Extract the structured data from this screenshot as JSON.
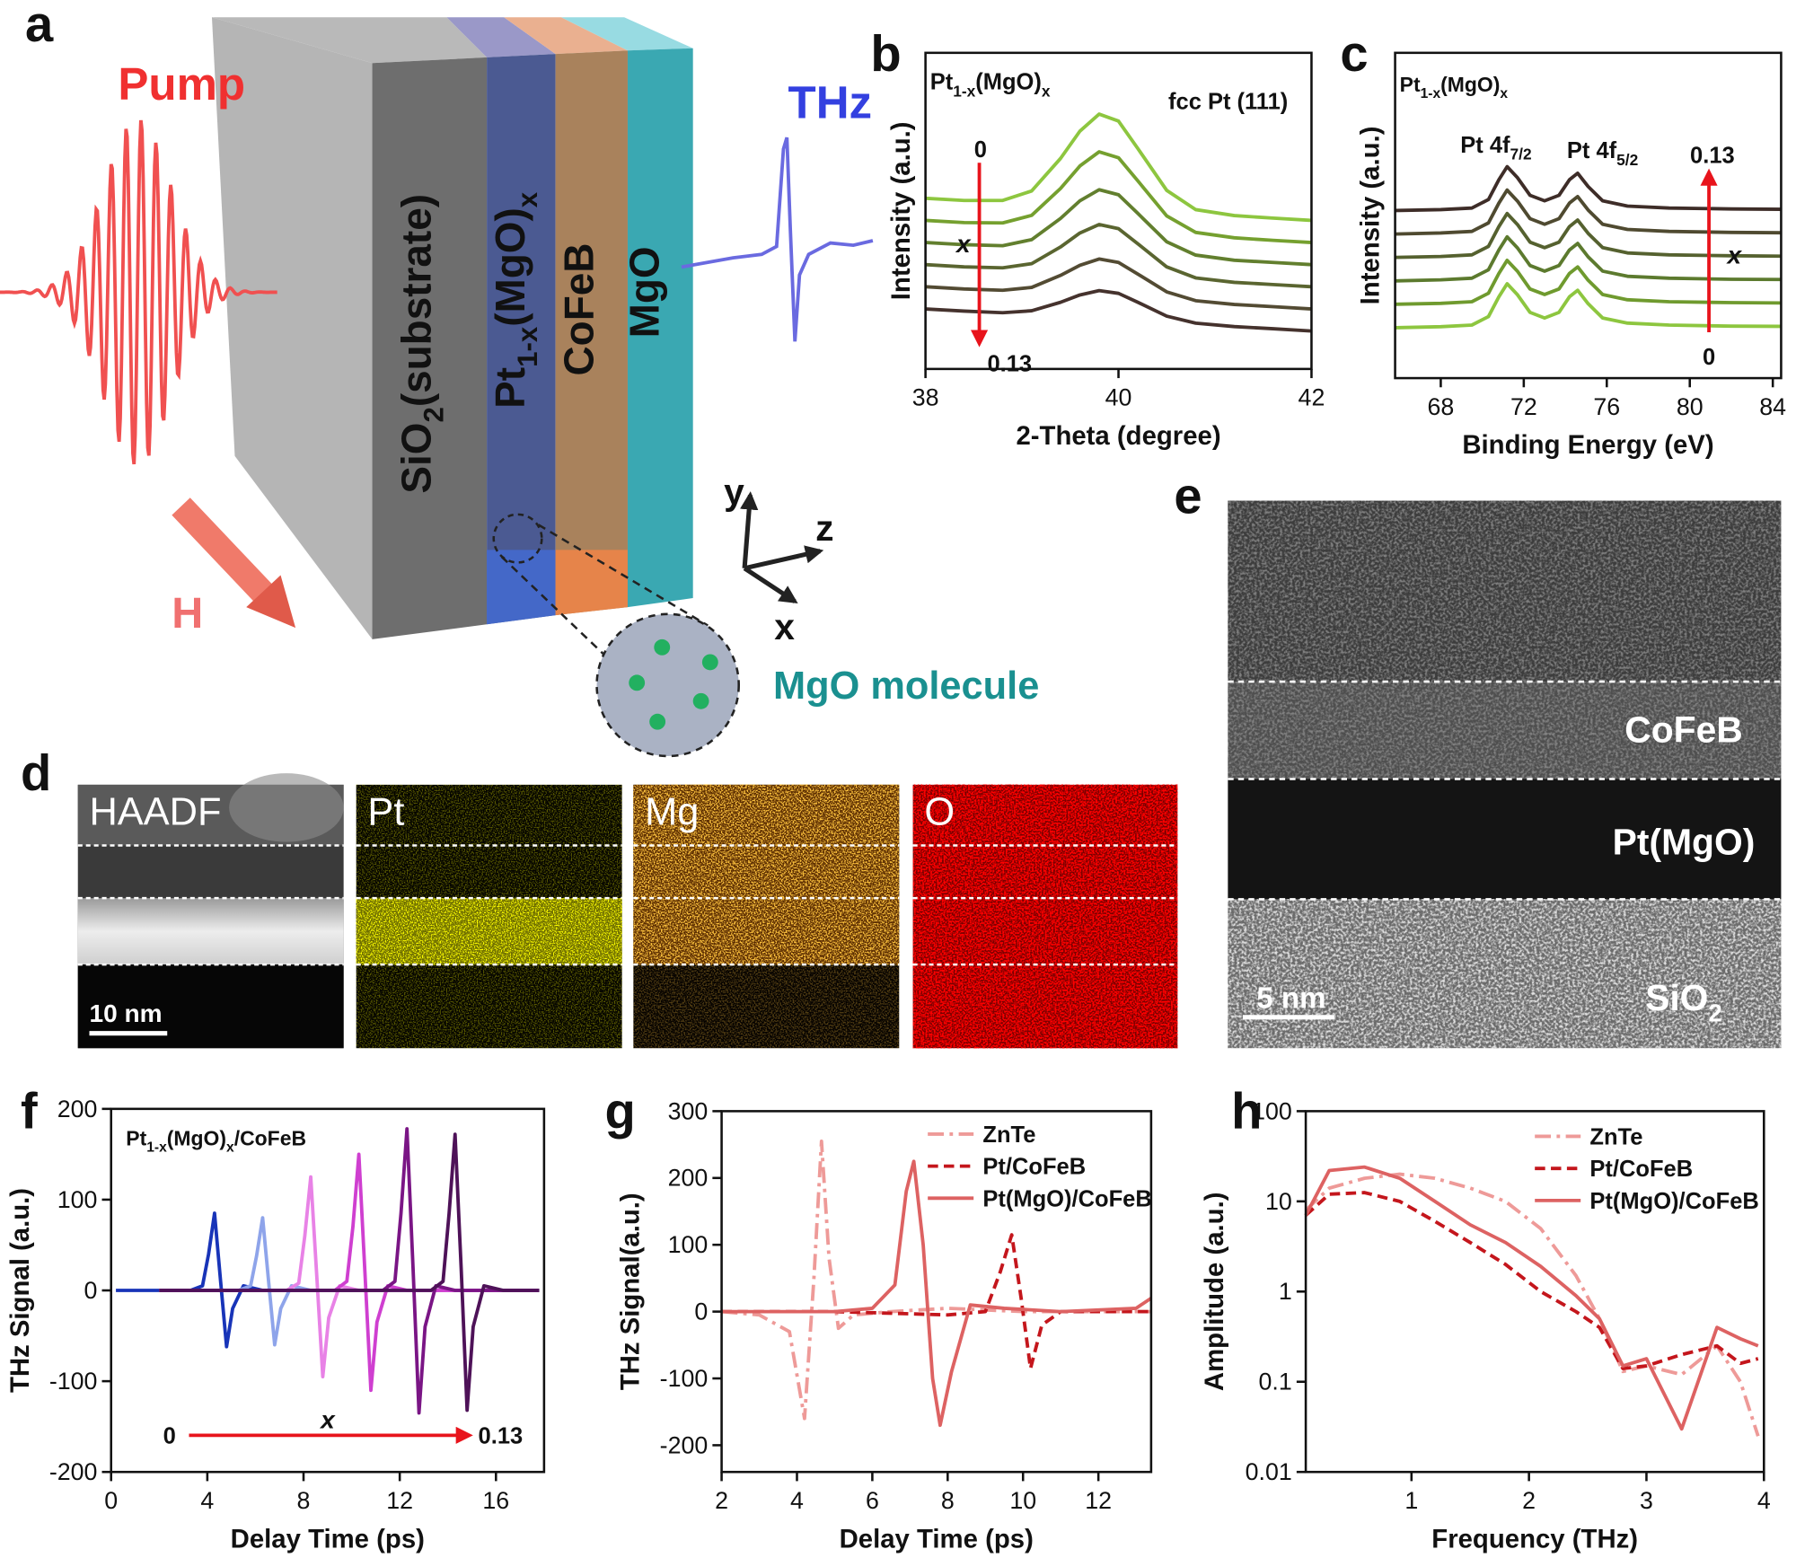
{
  "panel_labels": [
    "a",
    "b",
    "c",
    "d",
    "e",
    "f",
    "g",
    "h"
  ],
  "schematic": {
    "pump": "Pump",
    "thz": "THz",
    "field": "H",
    "layers": [
      [
        "SiO",
        "2",
        "(substrate)"
      ],
      [
        "Pt",
        "1-x",
        "(MgO)",
        "x"
      ],
      [
        "CoFeB"
      ],
      [
        "MgO"
      ]
    ],
    "axes": [
      "y",
      "z",
      "x"
    ],
    "inset": "MgO molecule"
  },
  "eds": {
    "maps": [
      "HAADF",
      "Pt",
      "Mg",
      "O"
    ],
    "scale_bar": "10 nm"
  },
  "tem": {
    "layers": [
      [
        "CoFeB"
      ],
      [
        "Pt(MgO)"
      ],
      [
        "SiO",
        "2"
      ]
    ],
    "scale_bar": "5 nm"
  },
  "chart_data": [
    {
      "type": "line",
      "xlabel": "2-Theta (degree)",
      "ylabel": "Intensity (a.u.)",
      "title": [
        "Pt",
        "1-x",
        "(MgO)",
        "x"
      ],
      "peak_labels": [
        [
          "fcc Pt (111)"
        ]
      ],
      "arrow": {
        "from": 0,
        "to": 0.13,
        "variable": "x"
      },
      "xlim": [
        38,
        42
      ],
      "ylim": [
        0,
        10
      ],
      "xticks": [
        38,
        40,
        42
      ],
      "x": [
        38,
        38.4,
        38.8,
        39.1,
        39.4,
        39.6,
        39.8,
        40.0,
        40.2,
        40.5,
        40.8,
        41.2,
        41.6,
        42
      ],
      "series": [
        {
          "color": "#8dc63f",
          "dash": "solid",
          "values": [
            5.4,
            5.33,
            5.33,
            5.63,
            6.66,
            7.52,
            8.06,
            7.84,
            6.97,
            5.65,
            5.04,
            4.85,
            4.77,
            4.7
          ]
        },
        {
          "color": "#75a02f",
          "dash": "solid",
          "values": [
            4.7,
            4.63,
            4.62,
            4.86,
            5.71,
            6.42,
            6.87,
            6.68,
            5.95,
            4.84,
            4.32,
            4.15,
            4.07,
            4.0
          ]
        },
        {
          "color": "#627f2e",
          "dash": "solid",
          "values": [
            4.0,
            3.93,
            3.9,
            4.09,
            4.76,
            5.32,
            5.67,
            5.51,
            4.92,
            4.02,
            3.6,
            3.44,
            3.37,
            3.3
          ]
        },
        {
          "color": "#5a6530",
          "dash": "solid",
          "values": [
            3.3,
            3.23,
            3.2,
            3.33,
            3.86,
            4.3,
            4.57,
            4.44,
            3.96,
            3.23,
            2.88,
            2.74,
            2.67,
            2.6
          ]
        },
        {
          "color": "#534b33",
          "dash": "solid",
          "values": [
            2.6,
            2.53,
            2.49,
            2.58,
            2.96,
            3.28,
            3.48,
            3.37,
            3.0,
            2.44,
            2.16,
            2.04,
            1.97,
            1.9
          ]
        },
        {
          "color": "#45322d",
          "dash": "solid",
          "values": [
            1.9,
            1.83,
            1.78,
            1.84,
            2.11,
            2.34,
            2.48,
            2.39,
            2.11,
            1.67,
            1.45,
            1.34,
            1.27,
            1.2
          ]
        }
      ]
    },
    {
      "type": "line",
      "xlabel": "Binding Energy (eV)",
      "ylabel": "Intensity (a.u.)",
      "title": [
        "Pt",
        "1-x",
        "(MgO)",
        "x"
      ],
      "peak_labels": [
        [
          "Pt 4f",
          "7/2"
        ],
        [
          "Pt 4f",
          "5/2"
        ]
      ],
      "arrow": {
        "from": 0,
        "to": 0.13,
        "variable": "x"
      },
      "xlim": [
        65.8,
        84.4
      ],
      "ylim": [
        0,
        10
      ],
      "xticks": [
        68,
        72,
        76,
        80,
        84
      ],
      "x": [
        65.8,
        68,
        69.5,
        70.3,
        70.8,
        71.2,
        71.7,
        72.3,
        73,
        73.7,
        74.2,
        74.6,
        75.1,
        75.8,
        77,
        79,
        82,
        84.4
      ],
      "series": [
        {
          "color": "#8dc63f",
          "dash": "solid",
          "values": [
            1.55,
            1.58,
            1.63,
            1.89,
            2.5,
            2.9,
            2.56,
            2.02,
            1.85,
            2.02,
            2.5,
            2.7,
            2.29,
            1.85,
            1.69,
            1.63,
            1.6,
            1.59
          ]
        },
        {
          "color": "#6f9a2e",
          "dash": "solid",
          "values": [
            2.27,
            2.3,
            2.35,
            2.61,
            3.22,
            3.62,
            3.28,
            2.74,
            2.57,
            2.74,
            3.22,
            3.42,
            3.01,
            2.57,
            2.41,
            2.35,
            2.32,
            2.31
          ]
        },
        {
          "color": "#5c7a2e",
          "dash": "solid",
          "values": [
            2.99,
            3.02,
            3.07,
            3.33,
            3.94,
            4.34,
            4.0,
            3.46,
            3.29,
            3.46,
            3.94,
            4.14,
            3.73,
            3.29,
            3.13,
            3.07,
            3.04,
            3.03
          ]
        },
        {
          "color": "#55612f",
          "dash": "solid",
          "values": [
            3.71,
            3.74,
            3.79,
            4.05,
            4.66,
            5.06,
            4.72,
            4.18,
            4.01,
            4.18,
            4.66,
            4.86,
            4.45,
            4.01,
            3.85,
            3.79,
            3.76,
            3.75
          ]
        },
        {
          "color": "#4f4a30",
          "dash": "solid",
          "values": [
            4.43,
            4.46,
            4.51,
            4.77,
            5.38,
            5.78,
            5.44,
            4.9,
            4.73,
            4.9,
            5.38,
            5.58,
            5.17,
            4.73,
            4.57,
            4.51,
            4.48,
            4.47
          ]
        },
        {
          "color": "#3e2d28",
          "dash": "solid",
          "values": [
            5.15,
            5.18,
            5.23,
            5.49,
            6.1,
            6.5,
            6.16,
            5.62,
            5.45,
            5.62,
            6.1,
            6.3,
            5.89,
            5.45,
            5.29,
            5.23,
            5.2,
            5.19
          ]
        }
      ]
    },
    {
      "type": "line",
      "xlabel": "Delay Time (ps)",
      "ylabel": "THz Signal (a.u.)",
      "title": [
        "Pt",
        "1-x",
        "(MgO)",
        "x",
        "/CoFeB"
      ],
      "arrow": {
        "from": 0,
        "to": 0.13,
        "variable": "x"
      },
      "xlim": [
        0,
        18
      ],
      "ylim": [
        -200,
        200
      ],
      "xticks": [
        0,
        4,
        8,
        12,
        16
      ],
      "yticks": [
        -200,
        -100,
        0,
        100,
        200
      ],
      "series": [
        {
          "color": "#1834b8",
          "dash": "solid",
          "x": [
            0.2,
            3.3,
            3.8,
            4.05,
            4.3,
            4.55,
            4.8,
            5.05,
            5.5,
            6.3,
            17.8
          ],
          "values": [
            0,
            0,
            5,
            40,
            85,
            10,
            -62,
            -20,
            5,
            0,
            0
          ]
        },
        {
          "color": "#8ea4ea",
          "dash": "solid",
          "x": [
            2,
            5.3,
            5.8,
            6.05,
            6.3,
            6.55,
            6.8,
            7.05,
            7.5,
            8.3,
            17.8
          ],
          "values": [
            0,
            0,
            5,
            38,
            80,
            10,
            -60,
            -20,
            5,
            0,
            0
          ]
        },
        {
          "color": "#e882e6",
          "dash": "solid",
          "x": [
            2,
            7.3,
            7.8,
            8.05,
            8.3,
            8.55,
            8.8,
            9.05,
            9.5,
            10.3,
            17.8
          ],
          "values": [
            0,
            0,
            8,
            60,
            125,
            15,
            -95,
            -30,
            5,
            0,
            0
          ]
        },
        {
          "color": "#cf3fd0",
          "dash": "solid",
          "x": [
            2,
            9.3,
            9.8,
            10.05,
            10.3,
            10.55,
            10.8,
            11.05,
            11.5,
            12.3,
            17.8
          ],
          "values": [
            0,
            0,
            10,
            70,
            150,
            20,
            -110,
            -35,
            5,
            0,
            0
          ]
        },
        {
          "color": "#7a1585",
          "dash": "solid",
          "x": [
            2,
            11.3,
            11.8,
            12.05,
            12.3,
            12.55,
            12.8,
            13.05,
            13.5,
            14.3,
            17.8
          ],
          "values": [
            0,
            0,
            10,
            85,
            178,
            25,
            -135,
            -40,
            5,
            0,
            0
          ]
        },
        {
          "color": "#4e1258",
          "dash": "solid",
          "x": [
            2,
            13.3,
            13.8,
            14.05,
            14.3,
            14.55,
            14.8,
            15.05,
            15.5,
            16.3,
            17.8
          ],
          "values": [
            0,
            0,
            10,
            85,
            172,
            25,
            -132,
            -40,
            5,
            0,
            0
          ]
        }
      ]
    },
    {
      "type": "line",
      "xlabel": "Delay Time (ps)",
      "ylabel": "THz Signal(a.u.)",
      "xlim": [
        2,
        13.4
      ],
      "ylim": [
        -240,
        300
      ],
      "xticks": [
        2,
        4,
        6,
        8,
        10,
        12
      ],
      "yticks": [
        -200,
        -100,
        0,
        100,
        200,
        300
      ],
      "legend": "upper right",
      "series": [
        {
          "name": "ZnTe",
          "color": "#ee9a98",
          "dash": "dashdot",
          "x": [
            2,
            3,
            3.8,
            4.2,
            4.45,
            4.65,
            4.85,
            5.1,
            5.5,
            6.5,
            8,
            10,
            12,
            13.4
          ],
          "values": [
            0,
            -5,
            -30,
            -160,
            50,
            255,
            80,
            -25,
            -5,
            0,
            5,
            0,
            0,
            0
          ]
        },
        {
          "name": "Pt/CoFeB",
          "color": "#c4161c",
          "dash": "dashed",
          "x": [
            2,
            5,
            8,
            9,
            9.4,
            9.7,
            9.95,
            10.2,
            10.5,
            11,
            13.4
          ],
          "values": [
            0,
            0,
            -5,
            0,
            60,
            115,
            20,
            -85,
            -20,
            0,
            0
          ]
        },
        {
          "name": "Pt(MgO)/CoFeB",
          "color": "#dd6262",
          "dash": "solid",
          "x": [
            2,
            5,
            6,
            6.6,
            6.9,
            7.1,
            7.35,
            7.6,
            7.8,
            8.1,
            8.6,
            9.5,
            11,
            13,
            13.4
          ],
          "values": [
            0,
            0,
            5,
            40,
            180,
            225,
            100,
            -100,
            -170,
            -90,
            10,
            5,
            0,
            5,
            20
          ]
        }
      ]
    },
    {
      "type": "line",
      "xlabel": "Frequency (THz)",
      "ylabel": "Amplitude (a.u.)",
      "xlim": [
        0.1,
        4
      ],
      "ylim": [
        0.01,
        100
      ],
      "log_y": true,
      "xticks": [
        1,
        2,
        3,
        4
      ],
      "yticks": [
        0.01,
        0.1,
        1,
        10,
        100
      ],
      "legend": "upper right",
      "series": [
        {
          "name": "ZnTe",
          "color": "#ee9a98",
          "dash": "dashdot",
          "x": [
            0.1,
            0.3,
            0.6,
            0.9,
            1.2,
            1.5,
            1.8,
            2.1,
            2.4,
            2.6,
            2.8,
            3.0,
            3.3,
            3.6,
            3.8,
            3.95
          ],
          "values": [
            8,
            14,
            18,
            20,
            18,
            14,
            10,
            5,
            1.5,
            0.5,
            0.13,
            0.15,
            0.12,
            0.25,
            0.1,
            0.025
          ]
        },
        {
          "name": "Pt/CoFeB",
          "color": "#c4161c",
          "dash": "dashed",
          "x": [
            0.1,
            0.3,
            0.6,
            0.9,
            1.2,
            1.5,
            1.8,
            2.1,
            2.4,
            2.6,
            2.8,
            3.0,
            3.3,
            3.6,
            3.8,
            3.95
          ],
          "values": [
            7,
            12,
            12.5,
            10,
            6,
            3.5,
            2,
            1.0,
            0.6,
            0.4,
            0.14,
            0.15,
            0.2,
            0.25,
            0.16,
            0.18
          ]
        },
        {
          "name": "Pt(MgO)/CoFeB",
          "color": "#dd6262",
          "dash": "solid",
          "x": [
            0.1,
            0.3,
            0.6,
            0.9,
            1.2,
            1.5,
            1.8,
            2.1,
            2.4,
            2.6,
            2.8,
            3.0,
            3.3,
            3.6,
            3.8,
            3.95
          ],
          "values": [
            7,
            22,
            24,
            18,
            10,
            5.5,
            3.5,
            1.9,
            0.9,
            0.5,
            0.15,
            0.18,
            0.03,
            0.4,
            0.3,
            0.25
          ]
        }
      ]
    }
  ]
}
